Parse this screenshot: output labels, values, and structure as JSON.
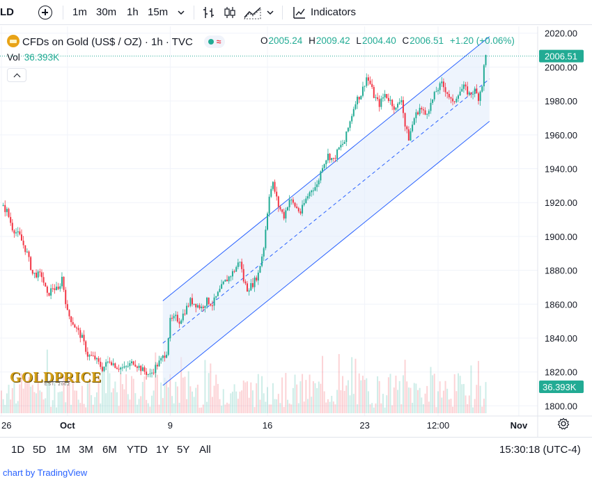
{
  "toolbar": {
    "symbol_fragment": "LD",
    "intervals": [
      "1m",
      "30m",
      "1h",
      "15m"
    ],
    "active_interval": "1h",
    "indicators_label": "Indicators"
  },
  "legend": {
    "title": "CFDs on Gold (US$ / OZ) · 1h · TVC",
    "status_symbol": "≈",
    "ohlc": [
      {
        "k": "O",
        "v": "2005.24"
      },
      {
        "k": "H",
        "v": "2009.42"
      },
      {
        "k": "L",
        "v": "2004.40"
      },
      {
        "k": "C",
        "v": "2006.51"
      }
    ],
    "change": "+1.20 (+0.06%)",
    "vol_label": "Vol",
    "vol_value": "36.393K"
  },
  "watermark": {
    "text": "GOLDPRICE",
    "sub": "EST. 2002"
  },
  "bottom_bar": {
    "ranges": [
      "1D",
      "5D",
      "1M",
      "3M",
      "6M",
      "YTD",
      "1Y",
      "5Y",
      "All"
    ],
    "clock": "15:30:18 (UTC-4)",
    "credit_prefix": "chart by ",
    "credit_brand": "TradingView"
  },
  "colors": {
    "up": "#22ab94",
    "down": "#f23645",
    "channel": "#2962ff",
    "channel_fill": "#e3ecfb",
    "badge": "#22ab94"
  },
  "chart_data": {
    "type": "candlestick",
    "symbol": "CFDs on Gold (US$ / OZ)",
    "interval": "1h",
    "last_price": 2006.51,
    "last_volume": "36.393K",
    "y_ticks": [
      1800,
      1820,
      1840,
      1860,
      1880,
      1900,
      1920,
      1940,
      1960,
      1980,
      2000,
      2020
    ],
    "ylim": [
      1794,
      2024
    ],
    "x_labels": [
      "26",
      "Oct",
      "9",
      "16",
      "23",
      "12:00",
      "Nov"
    ],
    "legend_placement": "top-left",
    "grid": true,
    "close_path": [
      {
        "t": 0,
        "p": 1918
      },
      {
        "t": 3,
        "p": 1915
      },
      {
        "t": 6,
        "p": 1905
      },
      {
        "t": 10,
        "p": 1900
      },
      {
        "t": 14,
        "p": 1890
      },
      {
        "t": 17,
        "p": 1878
      },
      {
        "t": 22,
        "p": 1877
      },
      {
        "t": 25,
        "p": 1865
      },
      {
        "t": 28,
        "p": 1870
      },
      {
        "t": 31,
        "p": 1868
      },
      {
        "t": 33,
        "p": 1876
      },
      {
        "t": 36,
        "p": 1855
      },
      {
        "t": 40,
        "p": 1847
      },
      {
        "t": 44,
        "p": 1840
      },
      {
        "t": 47,
        "p": 1830
      },
      {
        "t": 51,
        "p": 1828
      },
      {
        "t": 55,
        "p": 1822
      },
      {
        "t": 59,
        "p": 1827
      },
      {
        "t": 63,
        "p": 1823
      },
      {
        "t": 67,
        "p": 1822
      },
      {
        "t": 72,
        "p": 1826
      },
      {
        "t": 77,
        "p": 1821
      },
      {
        "t": 81,
        "p": 1818
      },
      {
        "t": 84,
        "p": 1823
      },
      {
        "t": 87,
        "p": 1827
      },
      {
        "t": 90,
        "p": 1832
      },
      {
        "t": 92,
        "p": 1850
      },
      {
        "t": 95,
        "p": 1852
      },
      {
        "t": 97,
        "p": 1850
      },
      {
        "t": 100,
        "p": 1856
      },
      {
        "t": 103,
        "p": 1862
      },
      {
        "t": 106,
        "p": 1860
      },
      {
        "t": 109,
        "p": 1858
      },
      {
        "t": 112,
        "p": 1862
      },
      {
        "t": 115,
        "p": 1860
      },
      {
        "t": 118,
        "p": 1866
      },
      {
        "t": 121,
        "p": 1872
      },
      {
        "t": 124,
        "p": 1876
      },
      {
        "t": 127,
        "p": 1880
      },
      {
        "t": 130,
        "p": 1886
      },
      {
        "t": 132,
        "p": 1874
      },
      {
        "t": 134,
        "p": 1869
      },
      {
        "t": 137,
        "p": 1872
      },
      {
        "t": 140,
        "p": 1878
      },
      {
        "t": 143,
        "p": 1894
      },
      {
        "t": 146,
        "p": 1925
      },
      {
        "t": 148,
        "p": 1931
      },
      {
        "t": 151,
        "p": 1918
      },
      {
        "t": 154,
        "p": 1912
      },
      {
        "t": 157,
        "p": 1922
      },
      {
        "t": 160,
        "p": 1918
      },
      {
        "t": 163,
        "p": 1914
      },
      {
        "t": 166,
        "p": 1922
      },
      {
        "t": 169,
        "p": 1928
      },
      {
        "t": 172,
        "p": 1930
      },
      {
        "t": 175,
        "p": 1942
      },
      {
        "t": 178,
        "p": 1948
      },
      {
        "t": 181,
        "p": 1945
      },
      {
        "t": 184,
        "p": 1952
      },
      {
        "t": 187,
        "p": 1956
      },
      {
        "t": 190,
        "p": 1968
      },
      {
        "t": 193,
        "p": 1980
      },
      {
        "t": 196,
        "p": 1984
      },
      {
        "t": 199,
        "p": 1994
      },
      {
        "t": 201,
        "p": 1990
      },
      {
        "t": 203,
        "p": 1983
      },
      {
        "t": 206,
        "p": 1978
      },
      {
        "t": 209,
        "p": 1984
      },
      {
        "t": 212,
        "p": 1980
      },
      {
        "t": 215,
        "p": 1975
      },
      {
        "t": 218,
        "p": 1982
      },
      {
        "t": 220,
        "p": 1965
      },
      {
        "t": 222,
        "p": 1958
      },
      {
        "t": 225,
        "p": 1970
      },
      {
        "t": 228,
        "p": 1976
      },
      {
        "t": 231,
        "p": 1972
      },
      {
        "t": 234,
        "p": 1978
      },
      {
        "t": 237,
        "p": 1986
      },
      {
        "t": 240,
        "p": 1990
      },
      {
        "t": 243,
        "p": 1985
      },
      {
        "t": 246,
        "p": 1978
      },
      {
        "t": 249,
        "p": 1985
      },
      {
        "t": 252,
        "p": 1988
      },
      {
        "t": 255,
        "p": 1984
      },
      {
        "t": 258,
        "p": 1986
      },
      {
        "t": 260,
        "p": 1982
      },
      {
        "t": 262,
        "p": 1990
      },
      {
        "t": 263,
        "p": 2000
      },
      {
        "t": 264,
        "p": 2006.51
      }
    ],
    "channel": {
      "upper": [
        {
          "t": 88,
          "p": 1862
        },
        {
          "t": 266,
          "p": 2018
        }
      ],
      "mid": [
        {
          "t": 88,
          "p": 1837
        },
        {
          "t": 266,
          "p": 1993
        }
      ],
      "lower": [
        {
          "t": 88,
          "p": 1812
        },
        {
          "t": 266,
          "p": 1968
        }
      ]
    }
  }
}
